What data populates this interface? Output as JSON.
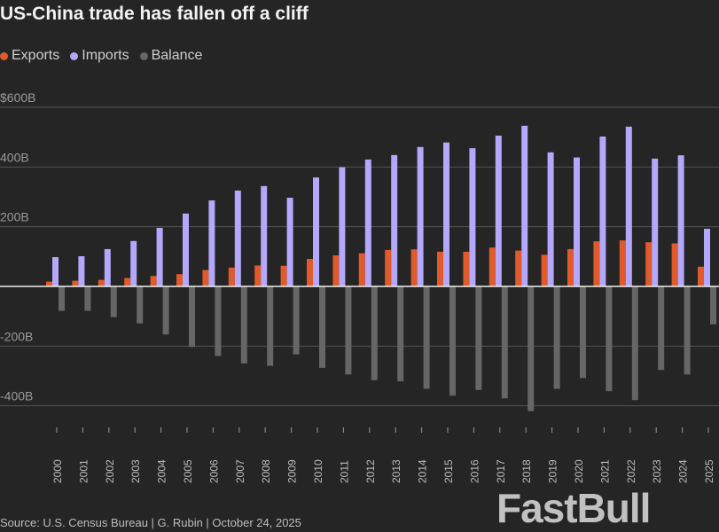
{
  "chart_data": {
    "type": "bar",
    "title": "US-China trade has fallen off a cliff",
    "source": "Source: U.S. Census Bureau | G. Rubin | October 24, 2025",
    "legend_position": "top-left",
    "grid": true,
    "ylim": [
      -450,
      600
    ],
    "yticks": [
      {
        "value": 600,
        "label": "$600B"
      },
      {
        "value": 400,
        "label": "400B"
      },
      {
        "value": 200,
        "label": "200B"
      },
      {
        "value": 0,
        "label": ""
      },
      {
        "value": -200,
        "label": "-200B"
      },
      {
        "value": -400,
        "label": "-400B"
      }
    ],
    "categories": [
      "2000",
      "2001",
      "2002",
      "2003",
      "2004",
      "2005",
      "2006",
      "2007",
      "2008",
      "2009",
      "2010",
      "2011",
      "2012",
      "2013",
      "2014",
      "2015",
      "2016",
      "2017",
      "2018",
      "2019",
      "2020",
      "2021",
      "2022",
      "2023",
      "2024",
      "2025"
    ],
    "series": [
      {
        "name": "Exports",
        "color": "#e05a2b",
        "values": [
          16,
          19,
          22,
          28,
          35,
          41,
          55,
          63,
          70,
          69,
          92,
          104,
          111,
          122,
          124,
          116,
          116,
          130,
          120,
          106,
          125,
          151,
          154,
          148,
          144,
          66
        ]
      },
      {
        "name": "Imports",
        "color": "#b3a8fa",
        "values": [
          98,
          101,
          125,
          152,
          196,
          244,
          288,
          321,
          336,
          297,
          365,
          399,
          425,
          440,
          467,
          482,
          463,
          505,
          538,
          449,
          432,
          502,
          535,
          428,
          439,
          193
        ]
      },
      {
        "name": "Balance",
        "color": "#666666",
        "values": [
          -82,
          -82,
          -103,
          -124,
          -161,
          -203,
          -233,
          -258,
          -266,
          -228,
          -273,
          -295,
          -314,
          -318,
          -343,
          -366,
          -347,
          -375,
          -418,
          -343,
          -307,
          -351,
          -381,
          -280,
          -295,
          -127
        ]
      }
    ]
  },
  "watermark": "FastBull"
}
